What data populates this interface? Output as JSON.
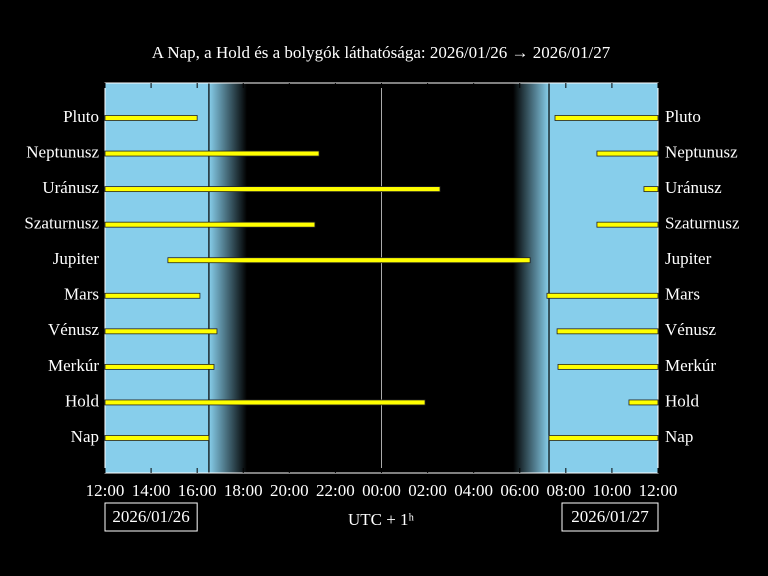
{
  "chart_data": {
    "type": "interval",
    "title": "A Nap, a Hold és a bolygók láthatósága: 2026/01/26 → 2026/01/27",
    "xlabel": "UTC + 1ʰ",
    "date_labels": [
      "2026/01/26",
      "2026/01/27"
    ],
    "categories": [
      "Pluto",
      "Neptunusz",
      "Uránusz",
      "Szaturnusz",
      "Jupiter",
      "Mars",
      "Vénusz",
      "Merkúr",
      "Hold",
      "Nap"
    ],
    "intervals": [
      [
        [
          0,
          4.0
        ],
        [
          19.53,
          24
        ]
      ],
      [
        [
          0,
          9.29
        ],
        [
          21.35,
          24
        ]
      ],
      [
        [
          0,
          14.54
        ],
        [
          23.39,
          24
        ]
      ],
      [
        [
          0,
          9.11
        ],
        [
          21.35,
          24
        ]
      ],
      [
        [
          2.73,
          18.45
        ]
      ],
      [
        [
          0,
          4.12
        ],
        [
          19.18,
          24
        ]
      ],
      [
        [
          0,
          4.86
        ],
        [
          19.62,
          24
        ]
      ],
      [
        [
          0,
          4.73
        ],
        [
          19.66,
          24
        ]
      ],
      [
        [
          0,
          13.89
        ],
        [
          22.74,
          24
        ]
      ],
      [
        [
          0,
          4.51
        ],
        [
          19.27,
          24
        ]
      ]
    ],
    "color": "#ffff00",
    "sky": {
      "sunset": 4.51,
      "dark_start": 6.16,
      "dark_end": 17.71,
      "sunrise": 19.27,
      "day_color": "#87ceeb"
    },
    "vlines": [
      12
    ],
    "xlim": [
      0,
      24
    ],
    "xticks": [
      {
        "value": 0,
        "label": "12:00"
      },
      {
        "value": 2,
        "label": "14:00"
      },
      {
        "value": 4,
        "label": "16:00"
      },
      {
        "value": 6,
        "label": "18:00"
      },
      {
        "value": 8,
        "label": "20:00"
      },
      {
        "value": 10,
        "label": "22:00"
      },
      {
        "value": 12,
        "label": "00:00"
      },
      {
        "value": 14,
        "label": "02:00"
      },
      {
        "value": 16,
        "label": "04:00"
      },
      {
        "value": 18,
        "label": "06:00"
      },
      {
        "value": 20,
        "label": "08:00"
      },
      {
        "value": 22,
        "label": "10:00"
      },
      {
        "value": 24,
        "label": "12:00"
      }
    ]
  }
}
